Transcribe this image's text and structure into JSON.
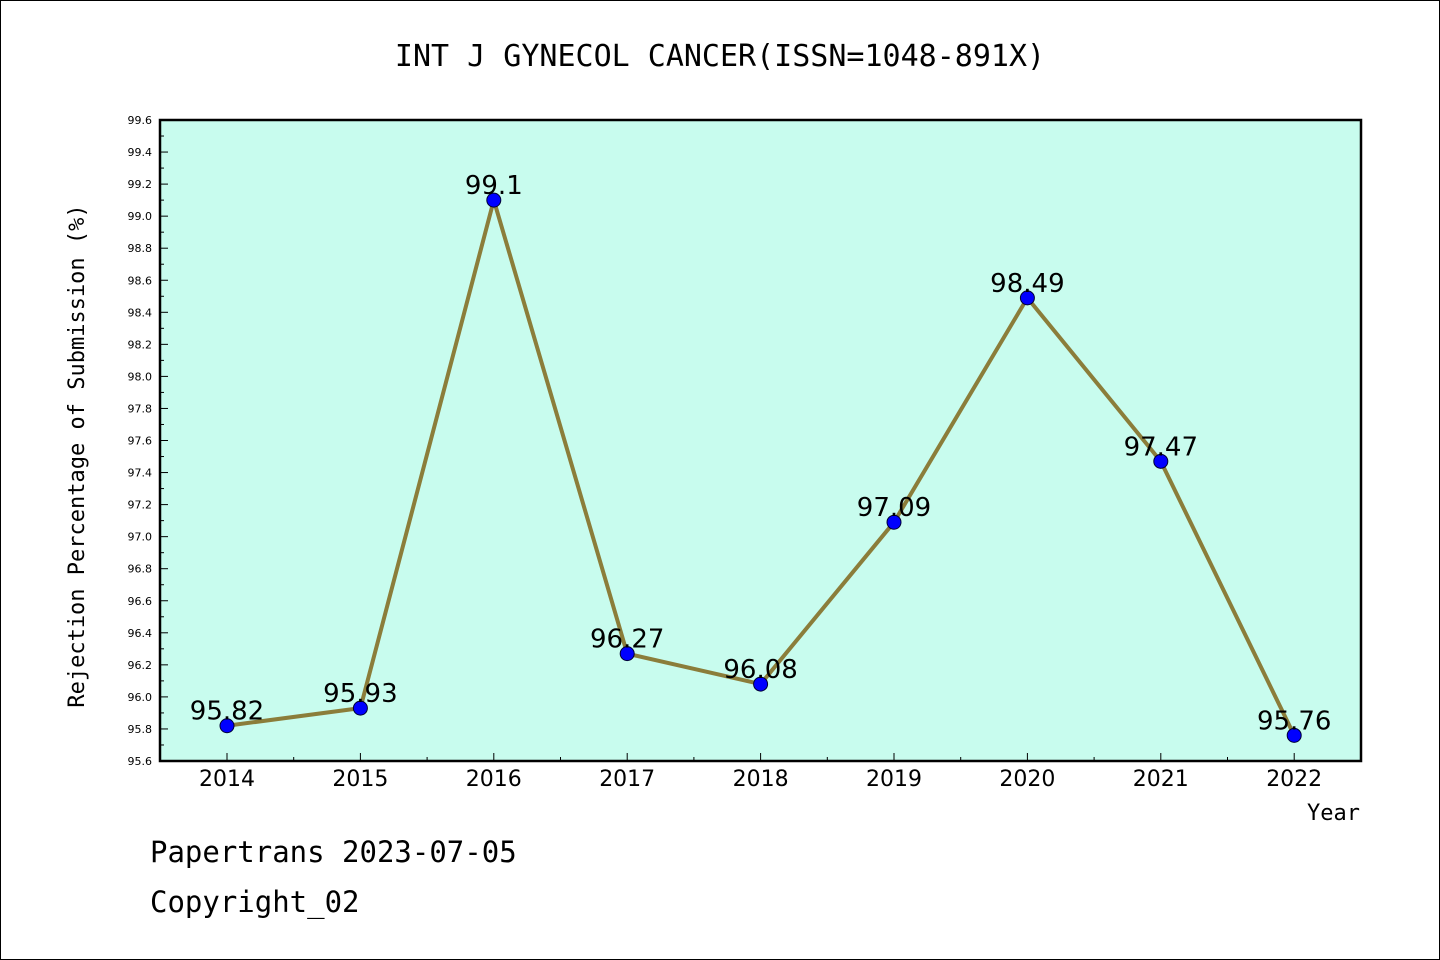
{
  "chart_data": {
    "type": "line",
    "title": "INT J GYNECOL CANCER(ISSN=1048-891X)",
    "xlabel": "Year",
    "ylabel": "Rejection Percentage of Submission (%)",
    "categories": [
      "2014",
      "2015",
      "2016",
      "2017",
      "2018",
      "2019",
      "2020",
      "2021",
      "2022"
    ],
    "series": [
      {
        "values": [
          95.82,
          95.93,
          99.1,
          96.27,
          96.08,
          97.09,
          98.49,
          97.47,
          95.76
        ],
        "labels": [
          "95.82",
          "95.93",
          "99.1",
          "96.27",
          "96.08",
          "97.09",
          "98.49",
          "97.47",
          "95.76"
        ]
      }
    ],
    "ylim": [
      95.6,
      99.6
    ],
    "yticks": [
      "95.6",
      "95.8",
      "96.0",
      "96.2",
      "96.4",
      "96.6",
      "96.8",
      "97.0",
      "97.2",
      "97.4",
      "97.6",
      "97.8",
      "98.0",
      "98.2",
      "98.4",
      "98.6",
      "98.8",
      "99.0",
      "99.2",
      "99.4",
      "99.6"
    ],
    "grid": false,
    "colors": {
      "plot_background": "#c8fcee",
      "line": "#8b7d3a",
      "marker": "#0000ff"
    }
  },
  "footer": {
    "line1": "Papertrans 2023-07-05",
    "line2": "Copyright_02"
  }
}
